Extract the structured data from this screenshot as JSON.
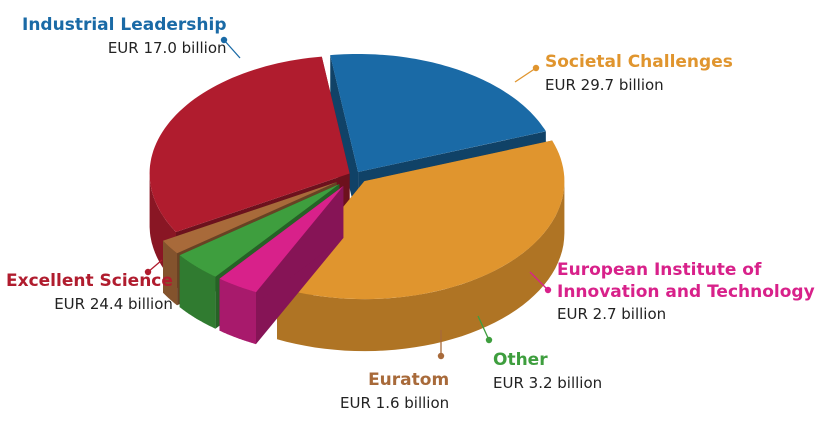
{
  "chart_data": {
    "type": "pie",
    "title": "",
    "unit": "EUR billion",
    "slices": [
      {
        "name": "Industrial Leadership",
        "value": 17.0,
        "value_label": "EUR 17.0 billion",
        "color": "#1a6aa6"
      },
      {
        "name": "Societal Challenges",
        "value": 29.7,
        "value_label": "EUR 29.7 billion",
        "color": "#e0952e"
      },
      {
        "name": "European Institute of Innovation and Technology",
        "name_lines": [
          "European Institute of",
          "Innovation and Technology"
        ],
        "value": 2.7,
        "value_label": "EUR 2.7 billion",
        "color": "#d8218a"
      },
      {
        "name": "Other",
        "value": 3.2,
        "value_label": "EUR 3.2 billion",
        "color": "#3e9e3e"
      },
      {
        "name": "Euratom",
        "value": 1.6,
        "value_label": "EUR 1.6 billion",
        "color": "#a86a3a"
      },
      {
        "name": "Excellent Science",
        "value": 24.4,
        "value_label": "EUR 24.4 billion",
        "color": "#b01c2e"
      }
    ]
  }
}
